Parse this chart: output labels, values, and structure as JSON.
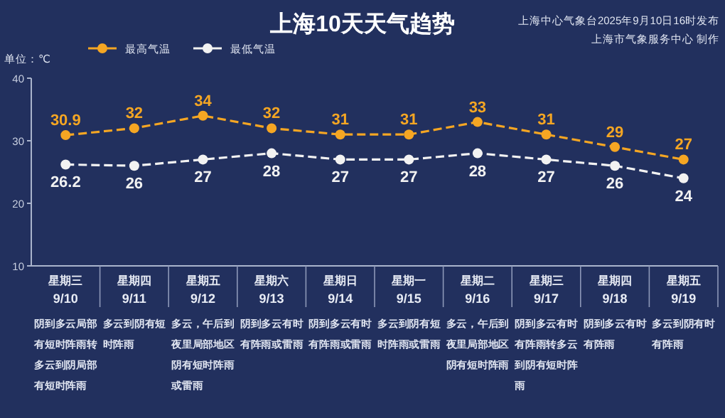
{
  "chart_data": {
    "type": "line",
    "title": "上海10天天气趋势",
    "subtitle": "上海中心气象台2025年9月10日16时发布",
    "ylabel": "单位：℃",
    "categories": [
      "星期三\n9/10",
      "星期四\n9/11",
      "星期五\n9/12",
      "星期六\n9/13",
      "星期日\n9/14",
      "星期一\n9/15",
      "星期二\n9/16",
      "星期三\n9/17",
      "星期四\n9/18",
      "星期五\n9/19"
    ],
    "series": [
      {
        "name": "最高气温",
        "color": "#f5a623",
        "values": [
          30.9,
          32,
          34,
          32,
          31,
          31,
          33,
          31,
          29,
          27
        ]
      },
      {
        "name": "最低气温",
        "color": "#f2f2f2",
        "values": [
          26.2,
          26,
          27,
          28,
          27,
          27,
          28,
          27,
          26,
          24
        ]
      }
    ],
    "ylim": [
      10,
      40
    ],
    "yticks": [
      10,
      20,
      30,
      40
    ],
    "grid": false,
    "legend": "top left",
    "marker": "circle",
    "line_style": "dashed",
    "data_labels": true,
    "annotations": [
      "上海市气象服务中心 制作",
      "阴到多云局部有短时阵雨转多云到阴局部有短时阵雨",
      "多云到阴有短时阵雨",
      "多云，午后到夜里局部地区阴有短时阵雨或雷雨",
      "阴到多云有时有阵雨或雷雨",
      "阴到多云有时有阵雨或雷雨",
      "多云到阴有短时阵雨或雷雨",
      "多云，午后到夜里局部地区阴有短时阵雨",
      "阴到多云有时有阵雨转多云到阴有短时阵雨",
      "阴到多云有时有阵雨",
      "多云到阴有时有阵雨"
    ]
  }
}
